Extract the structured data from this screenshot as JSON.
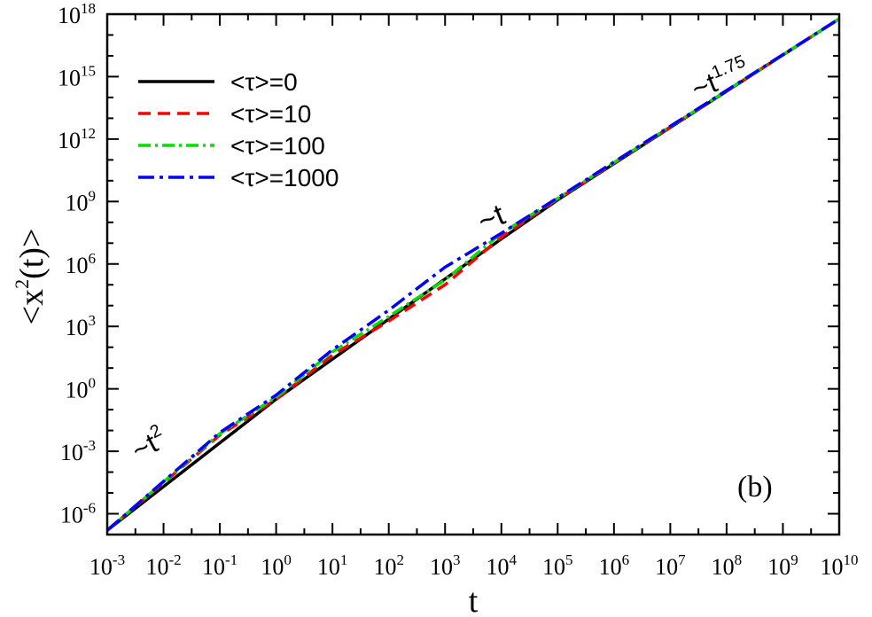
{
  "chart_data": {
    "type": "line",
    "xlabel": "t",
    "ylabel": "<x²(t)>",
    "ylabel_parts": [
      "<x",
      "2",
      "(t)>"
    ],
    "xscale": "log",
    "yscale": "log",
    "xlim": [
      0.001,
      10000000000
    ],
    "ylim": [
      1e-07,
      1e+18
    ],
    "x_ticks": [
      {
        "base": "10",
        "exp": "-3",
        "value": 0.001
      },
      {
        "base": "10",
        "exp": "-2",
        "value": 0.01
      },
      {
        "base": "10",
        "exp": "-1",
        "value": 0.1
      },
      {
        "base": "10",
        "exp": "0",
        "value": 1
      },
      {
        "base": "10",
        "exp": "1",
        "value": 10
      },
      {
        "base": "10",
        "exp": "2",
        "value": 100
      },
      {
        "base": "10",
        "exp": "3",
        "value": 1000
      },
      {
        "base": "10",
        "exp": "4",
        "value": 10000
      },
      {
        "base": "10",
        "exp": "5",
        "value": 100000
      },
      {
        "base": "10",
        "exp": "6",
        "value": 1000000
      },
      {
        "base": "10",
        "exp": "7",
        "value": 10000000
      },
      {
        "base": "10",
        "exp": "8",
        "value": 100000000
      },
      {
        "base": "10",
        "exp": "9",
        "value": 1000000000
      },
      {
        "base": "10",
        "exp": "10",
        "value": 10000000000
      }
    ],
    "y_ticks": [
      {
        "base": "10",
        "exp": "-6",
        "value": 1e-06
      },
      {
        "base": "10",
        "exp": "-3",
        "value": 0.001
      },
      {
        "base": "10",
        "exp": "0",
        "value": 1
      },
      {
        "base": "10",
        "exp": "3",
        "value": 1000
      },
      {
        "base": "10",
        "exp": "6",
        "value": 1000000
      },
      {
        "base": "10",
        "exp": "9",
        "value": 1000000000
      },
      {
        "base": "10",
        "exp": "12",
        "value": 1000000000000
      },
      {
        "base": "10",
        "exp": "15",
        "value": 1000000000000000
      },
      {
        "base": "10",
        "exp": "18",
        "value": 1000000000000000000
      }
    ],
    "legend_position": "top-left",
    "grid": false,
    "series": [
      {
        "name": "<τ>=0",
        "color": "#000000",
        "dash": "solid",
        "x": [
          0.001,
          1,
          10000,
          100000,
          10000000000
        ],
        "y": [
          1.6e-07,
          0.32,
          16000000.0,
          1200000000.0,
          6e+17
        ]
      },
      {
        "name": "<τ>=10",
        "color": "#ff0000",
        "dash": "dashed",
        "x": [
          0.001,
          0.1,
          1,
          10,
          100,
          1000,
          10000,
          100000,
          10000000000
        ],
        "y": [
          1.6e-07,
          0.006,
          0.32,
          42,
          1800,
          100000.0,
          20000000.0,
          1300000000.0,
          6e+17
        ]
      },
      {
        "name": "<τ>=100",
        "color": "#00e000",
        "dash": "dot-dash",
        "x": [
          0.001,
          0.1,
          1,
          10,
          100,
          1000,
          10000,
          100000,
          10000000000
        ],
        "y": [
          1.6e-07,
          0.007,
          0.4,
          60,
          3000,
          170000.0,
          30000000.0,
          1400000000.0,
          6e+17
        ]
      },
      {
        "name": "<τ>=1000",
        "color": "#0000ff",
        "dash": "dash-dot",
        "x": [
          0.001,
          0.1,
          1,
          10,
          100,
          1000,
          10000,
          100000,
          10000000000
        ],
        "y": [
          1.6e-07,
          0.008,
          0.5,
          75,
          6000,
          700000.0,
          30000000.0,
          1500000000.0,
          6e+17
        ]
      }
    ],
    "annotations": [
      {
        "id": "t2",
        "prefix": "~t",
        "exp": "2"
      },
      {
        "id": "t1",
        "prefix": "~t",
        "exp": ""
      },
      {
        "id": "t175",
        "prefix": "~t",
        "exp": "1.75"
      }
    ],
    "panel_label": "(b)"
  }
}
